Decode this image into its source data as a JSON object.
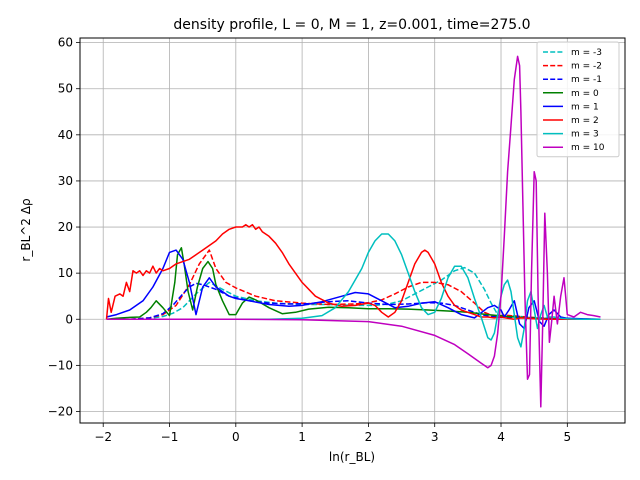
{
  "chart_data": {
    "type": "line",
    "title": "density profile, L = 0, M = 1, z=0.001, time=275.0",
    "xlabel": "ln(r_BL)",
    "ylabel": "r_BL^2 Δρ",
    "xlim": [
      -2.35,
      5.87
    ],
    "ylim": [
      -22.5,
      61.0
    ],
    "xticks": [
      -2,
      -1,
      0,
      1,
      2,
      3,
      4,
      5
    ],
    "yticks": [
      -20,
      -10,
      0,
      10,
      20,
      30,
      40,
      50,
      60
    ],
    "grid": true,
    "legend_position": "top-right",
    "series": [
      {
        "name": "m = -3",
        "color": "#00bfbf",
        "dashed": true,
        "x": [
          -1.95,
          -1.6,
          -1.3,
          -1.1,
          -0.95,
          -0.8,
          -0.6,
          -0.4,
          -0.2,
          0,
          0.3,
          0.6,
          1.0,
          1.4,
          1.8,
          2.1,
          2.3,
          2.5,
          2.7,
          2.9,
          3.1,
          3.3,
          3.45,
          3.6,
          3.75,
          3.85,
          3.95,
          4.05,
          4.15,
          4.3,
          4.5,
          4.7,
          4.9,
          5.2,
          5.5
        ],
        "y": [
          0,
          0,
          0.2,
          0.6,
          1.3,
          2.5,
          5.5,
          8.0,
          6.5,
          5.0,
          4.0,
          3.5,
          3.2,
          3.2,
          3.0,
          3.0,
          3.3,
          4.0,
          5.5,
          7.0,
          8.5,
          10.5,
          11.2,
          10.0,
          6.5,
          3.5,
          1.0,
          0.5,
          0.8,
          0.6,
          0.3,
          0.2,
          0.1,
          0.05,
          0
        ]
      },
      {
        "name": "m = -2",
        "color": "#ff0000",
        "dashed": true,
        "x": [
          -1.95,
          -1.6,
          -1.3,
          -1.1,
          -0.9,
          -0.7,
          -0.55,
          -0.45,
          -0.4,
          -0.3,
          -0.15,
          0,
          0.3,
          0.6,
          1.0,
          1.4,
          1.8,
          2.0,
          2.2,
          2.4,
          2.6,
          2.8,
          3.0,
          3.2,
          3.4,
          3.6,
          3.75,
          3.9,
          4.05,
          4.2,
          4.4,
          4.6,
          4.8,
          5.0,
          5.2,
          5.5
        ],
        "y": [
          0,
          0,
          0.3,
          1.0,
          3.0,
          7.5,
          12.0,
          14.0,
          15.0,
          11.0,
          8.0,
          6.8,
          5.0,
          4.0,
          3.5,
          3.2,
          3.3,
          3.6,
          4.2,
          5.5,
          7.0,
          8.0,
          8.0,
          7.5,
          6.0,
          3.5,
          1.5,
          0.6,
          0.9,
          0.7,
          0.5,
          0.3,
          0.2,
          0.1,
          0.05,
          0
        ]
      },
      {
        "name": "m = -1",
        "color": "#0000ff",
        "dashed": true,
        "x": [
          -1.95,
          -1.6,
          -1.3,
          -1.1,
          -0.95,
          -0.8,
          -0.7,
          -0.6,
          -0.5,
          -0.3,
          -0.1,
          0.2,
          0.5,
          0.8,
          1.1,
          1.4,
          1.7,
          2.0,
          2.3,
          2.6,
          2.9,
          3.1,
          3.3,
          3.5,
          3.7,
          3.85,
          4.0,
          4.2,
          4.4,
          4.6,
          4.8,
          5.0,
          5.3,
          5.5
        ],
        "y": [
          0,
          0,
          0.3,
          1.2,
          3.0,
          5.5,
          7.0,
          7.8,
          7.5,
          6.5,
          5.0,
          4.0,
          3.5,
          3.3,
          3.4,
          3.8,
          4.0,
          3.5,
          3.2,
          3.3,
          3.6,
          3.5,
          3.0,
          2.0,
          1.0,
          0.6,
          0.4,
          0.4,
          0.3,
          0.2,
          0.1,
          0.05,
          0.02,
          0
        ]
      },
      {
        "name": "m = 0",
        "color": "#008000",
        "dashed": false,
        "x": [
          -1.95,
          -1.8,
          -1.6,
          -1.45,
          -1.35,
          -1.28,
          -1.2,
          -1.1,
          -1.0,
          -0.92,
          -0.88,
          -0.82,
          -0.78,
          -0.72,
          -0.65,
          -0.58,
          -0.5,
          -0.42,
          -0.35,
          -0.3,
          -0.2,
          -0.1,
          0,
          0.1,
          0.2,
          0.3,
          0.5,
          0.7,
          0.9,
          1.1,
          1.4,
          1.7,
          2.0,
          2.3,
          2.6,
          2.9,
          3.2,
          3.5,
          3.8,
          4.1,
          4.4,
          4.7,
          5.0,
          5.3,
          5.5
        ],
        "y": [
          0,
          0.2,
          0.4,
          0.5,
          1.5,
          2.5,
          4.0,
          2.5,
          0.8,
          8.0,
          14.0,
          15.5,
          12.0,
          6.0,
          2.0,
          7.0,
          11.0,
          12.5,
          11.0,
          7.5,
          4.0,
          1.0,
          1.0,
          3.5,
          4.8,
          4.2,
          2.5,
          1.2,
          1.5,
          2.2,
          2.6,
          2.5,
          2.3,
          2.3,
          2.2,
          2.0,
          1.8,
          1.5,
          1.0,
          0.6,
          0.3,
          0.15,
          0.05,
          0.02,
          0
        ]
      },
      {
        "name": "m = 1",
        "color": "#0000ff",
        "dashed": false,
        "x": [
          -1.95,
          -1.8,
          -1.6,
          -1.4,
          -1.25,
          -1.1,
          -1.0,
          -0.9,
          -0.8,
          -0.7,
          -0.6,
          -0.5,
          -0.4,
          -0.3,
          -0.2,
          -0.1,
          0,
          0.2,
          0.5,
          0.8,
          1.0,
          1.3,
          1.6,
          1.8,
          2.0,
          2.2,
          2.4,
          2.6,
          2.8,
          3.0,
          3.2,
          3.4,
          3.6,
          3.8,
          3.9,
          4.0,
          4.05,
          4.12,
          4.2,
          4.28,
          4.35,
          4.42,
          4.5,
          4.58,
          4.65,
          4.72,
          4.8,
          4.9,
          5.0,
          5.2,
          5.5
        ],
        "y": [
          0.5,
          1.0,
          2.0,
          4.0,
          7.0,
          11.0,
          14.5,
          15.0,
          13.0,
          8.0,
          1.0,
          7.0,
          9.0,
          7.0,
          6.0,
          5.0,
          4.5,
          4.0,
          3.2,
          2.8,
          3.0,
          3.8,
          5.0,
          5.8,
          5.5,
          4.0,
          2.5,
          2.8,
          3.5,
          3.8,
          2.5,
          1.0,
          0.3,
          2.5,
          3.0,
          2.0,
          0.5,
          2.0,
          4.0,
          -1.0,
          -2.0,
          2.5,
          4.0,
          -0.5,
          -1.5,
          1.0,
          2.0,
          0.5,
          0.2,
          0.1,
          0
        ]
      },
      {
        "name": "m = 2",
        "color": "#ff0000",
        "dashed": false,
        "x": [
          -1.95,
          -1.92,
          -1.88,
          -1.82,
          -1.75,
          -1.7,
          -1.65,
          -1.6,
          -1.55,
          -1.5,
          -1.45,
          -1.4,
          -1.35,
          -1.3,
          -1.25,
          -1.2,
          -1.15,
          -1.1,
          -1.0,
          -0.9,
          -0.8,
          -0.7,
          -0.6,
          -0.5,
          -0.4,
          -0.3,
          -0.2,
          -0.1,
          0,
          0.1,
          0.15,
          0.2,
          0.25,
          0.3,
          0.35,
          0.4,
          0.5,
          0.6,
          0.7,
          0.8,
          1.0,
          1.2,
          1.4,
          1.6,
          1.8,
          2.0,
          2.1,
          2.2,
          2.3,
          2.4,
          2.5,
          2.6,
          2.7,
          2.8,
          2.85,
          2.9,
          3.0,
          3.1,
          3.2,
          3.3,
          3.4,
          3.5,
          3.6,
          3.7,
          3.8,
          3.9,
          4.0,
          4.1,
          4.2,
          4.3,
          4.4,
          4.5,
          4.6,
          4.7,
          4.8,
          5.0,
          5.2,
          5.5
        ],
        "y": [
          0,
          4.5,
          1.5,
          5.0,
          5.5,
          5.0,
          8.0,
          6.0,
          10.5,
          10.0,
          10.5,
          9.5,
          10.5,
          10.0,
          11.5,
          10.0,
          11.0,
          10.5,
          11.0,
          12.0,
          12.5,
          13.0,
          14.0,
          15.0,
          16.0,
          17.0,
          18.5,
          19.5,
          20.0,
          20.0,
          20.5,
          20.0,
          20.5,
          19.5,
          20.0,
          19.0,
          18.0,
          16.5,
          14.5,
          12.0,
          8.0,
          5.0,
          3.5,
          2.8,
          3.0,
          3.5,
          3.0,
          1.5,
          0.5,
          1.5,
          4.0,
          8.0,
          12.0,
          14.5,
          15.0,
          14.5,
          12.0,
          8.0,
          5.0,
          3.0,
          2.0,
          1.5,
          1.0,
          0.5,
          0.5,
          0.3,
          0.5,
          0.2,
          0,
          0.3,
          0.2,
          0.1,
          0.05,
          0.02,
          0,
          0,
          0,
          0
        ]
      },
      {
        "name": "m = 3",
        "color": "#00bfbf",
        "dashed": false,
        "x": [
          -1.95,
          -1.0,
          0,
          0.5,
          1.0,
          1.3,
          1.5,
          1.7,
          1.9,
          2.0,
          2.1,
          2.2,
          2.3,
          2.4,
          2.5,
          2.6,
          2.7,
          2.8,
          2.9,
          3.0,
          3.1,
          3.2,
          3.3,
          3.4,
          3.5,
          3.6,
          3.7,
          3.8,
          3.85,
          3.9,
          3.95,
          4.0,
          4.05,
          4.1,
          4.15,
          4.2,
          4.25,
          4.3,
          4.35,
          4.4,
          4.45,
          4.5,
          4.55,
          4.6,
          4.65,
          4.7,
          4.8,
          4.9,
          5.0,
          5.2,
          5.5
        ],
        "y": [
          0,
          0,
          0,
          0,
          0.2,
          0.8,
          2.5,
          6.0,
          11.0,
          14.5,
          17.0,
          18.5,
          18.5,
          17.0,
          14.0,
          10.0,
          6.0,
          2.5,
          1.0,
          1.5,
          4.5,
          9.0,
          11.5,
          11.5,
          9.0,
          4.5,
          0.5,
          -4.0,
          -4.5,
          -3.0,
          1.0,
          5.0,
          7.5,
          8.5,
          6.0,
          1.0,
          -4.0,
          -6.0,
          -2.0,
          4.0,
          6.0,
          2.0,
          -2.0,
          1.0,
          3.0,
          0.5,
          0.5,
          0.2,
          0.1,
          0,
          0
        ]
      },
      {
        "name": "m = 10",
        "color": "#bf00bf",
        "dashed": false,
        "x": [
          -1.95,
          -1.0,
          0,
          1.0,
          2.0,
          2.5,
          3.0,
          3.3,
          3.5,
          3.7,
          3.8,
          3.85,
          3.9,
          3.95,
          4.0,
          4.05,
          4.1,
          4.15,
          4.2,
          4.25,
          4.28,
          4.3,
          4.33,
          4.36,
          4.4,
          4.43,
          4.46,
          4.5,
          4.53,
          4.56,
          4.6,
          4.63,
          4.66,
          4.7,
          4.73,
          4.76,
          4.8,
          4.85,
          4.9,
          4.95,
          5.0,
          5.1,
          5.2,
          5.3,
          5.4,
          5.5
        ],
        "y": [
          0,
          0,
          0,
          -0.1,
          -0.5,
          -1.5,
          -3.5,
          -5.5,
          -7.5,
          -9.5,
          -10.5,
          -10.0,
          -8.0,
          -3.0,
          5.0,
          18.0,
          32.0,
          42.0,
          52.0,
          57.0,
          55.0,
          45.0,
          25.0,
          5.0,
          -13.0,
          -12.0,
          10.0,
          32.0,
          30.0,
          5.0,
          -19.0,
          0,
          23.0,
          10.0,
          -5.0,
          -1.0,
          5.0,
          -1.0,
          5.0,
          9.0,
          1.0,
          0.5,
          1.5,
          1.0,
          0.8,
          0.5
        ]
      }
    ]
  }
}
